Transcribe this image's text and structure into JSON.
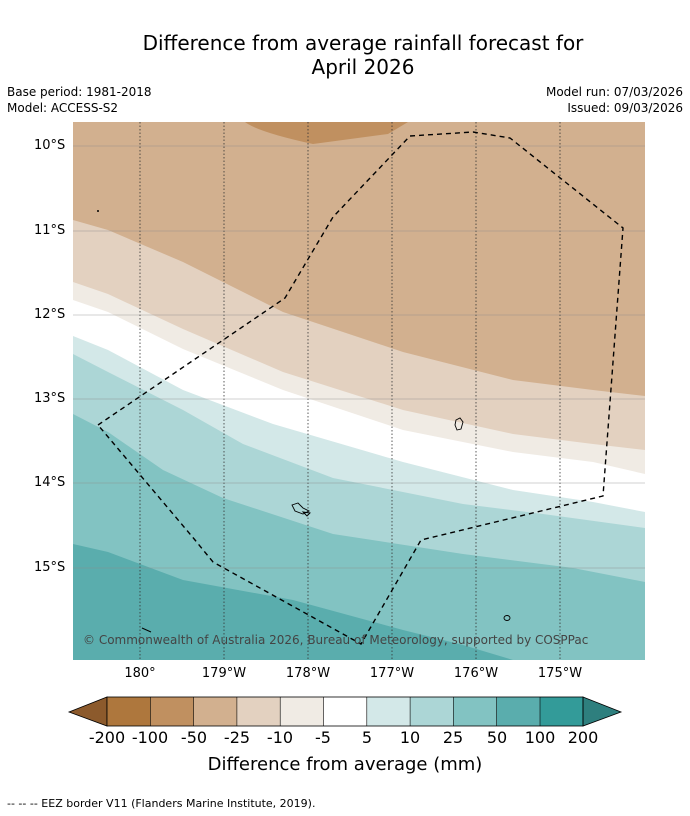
{
  "title": {
    "line1": "Difference from average rainfall forecast for",
    "line2": "April 2026"
  },
  "meta": {
    "base_period": "Base period: 1981-2018",
    "model": "Model: ACCESS-S2",
    "model_run": "Model run: 07/03/2026",
    "issued": "Issued: 09/03/2026"
  },
  "map": {
    "latitude_labels": [
      "10°S",
      "11°S",
      "12°S",
      "13°S",
      "14°S",
      "15°S"
    ],
    "longitude_labels": [
      "180°",
      "179°W",
      "178°W",
      "177°W",
      "176°W",
      "175°W"
    ],
    "copyright": "© Commonwealth of Australia 2026, Bureau of Meteorology, supported by COSPPac"
  },
  "colorbar": {
    "ticks": [
      "-200",
      "-100",
      "-50",
      "-25",
      "-10",
      "-5",
      "5",
      "10",
      "25",
      "50",
      "100",
      "200"
    ],
    "colors": {
      "lt_neg200": "#8c5a2c",
      "n200_n100": "#ae773d",
      "n100_n50": "#c09060",
      "n50_n25": "#d2b08f",
      "n25_n10": "#e3d1c0",
      "n10_n5": "#f0ebe4",
      "n5_5": "#ffffff",
      "p5_10": "#d3e8e8",
      "p10_25": "#acd6d6",
      "p25_50": "#82c3c2",
      "p50_100": "#5aadad",
      "p100_200": "#339b99",
      "gt_200": "#2e7f7e"
    },
    "title": "Difference from average (mm)"
  },
  "footnote": "--  --  -- EEZ border V11 (Flanders Marine Institute, 2019)."
}
